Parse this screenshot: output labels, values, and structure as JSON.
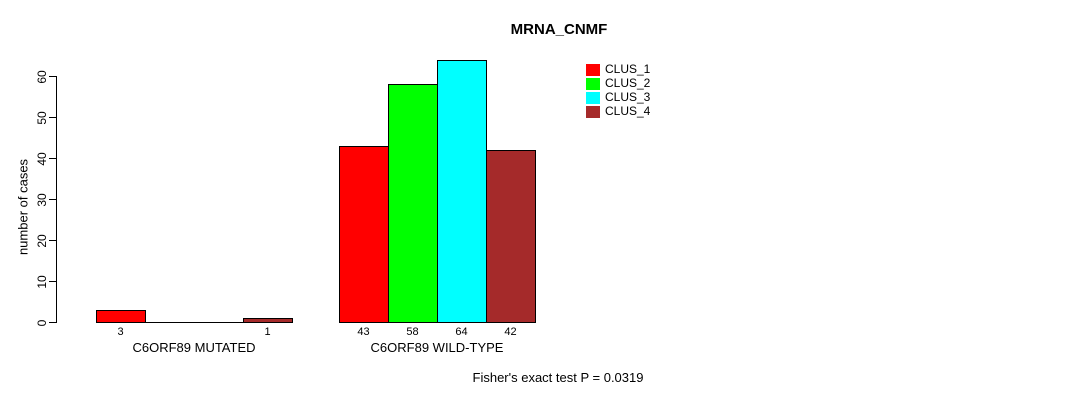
{
  "chart_data": {
    "type": "bar",
    "title": "MRNA_CNMF",
    "ylabel": "number of cases",
    "xlabel": "",
    "ylim": [
      0,
      60
    ],
    "yticks": [
      0,
      10,
      20,
      30,
      40,
      50,
      60
    ],
    "grid": false,
    "legend_position": "top-right",
    "series": [
      {
        "name": "CLUS_1",
        "color": "#ff0000"
      },
      {
        "name": "CLUS_2",
        "color": "#00ff00"
      },
      {
        "name": "CLUS_3",
        "color": "#00ffff"
      },
      {
        "name": "CLUS_4",
        "color": "#a52a2a"
      }
    ],
    "groups": [
      {
        "label": "C6ORF89 MUTATED",
        "values": [
          3,
          0,
          0,
          1
        ]
      },
      {
        "label": "C6ORF89 WILD-TYPE",
        "values": [
          43,
          58,
          64,
          42
        ]
      }
    ],
    "annotation": "Fisher's exact test P = 0.0319"
  }
}
